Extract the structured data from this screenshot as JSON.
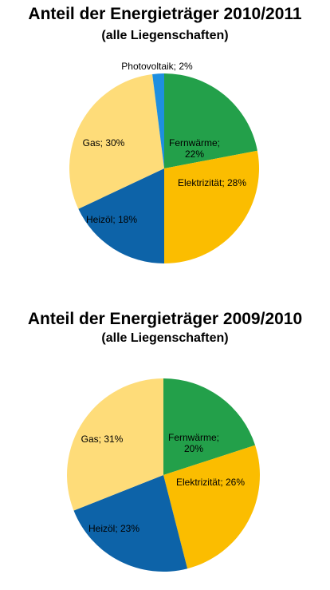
{
  "chart_data": [
    {
      "type": "pie",
      "title": "Anteil der Energieträger 2010/2011",
      "subtitle": "(alle Liegenschaften)",
      "slices": [
        {
          "label": "Fernwärme",
          "value": 22,
          "color": "#23a04a",
          "text_lines": [
            "Fernwärme;",
            "22%"
          ]
        },
        {
          "label": "Elektrizität",
          "value": 28,
          "color": "#fbbd00",
          "text_lines": [
            "Elektrizität; 28%"
          ]
        },
        {
          "label": "Heizöl",
          "value": 18,
          "color": "#0d63a8",
          "text_lines": [
            "Heizöl; 18%"
          ]
        },
        {
          "label": "Gas",
          "value": 30,
          "color": "#fedc79",
          "text_lines": [
            "Gas; 30%"
          ]
        },
        {
          "label": "Photovoltaik",
          "value": 2,
          "color": "#1e8fe0",
          "text_lines": [
            "Photovoltaik;  2%"
          ]
        }
      ]
    },
    {
      "type": "pie",
      "title": "Anteil der Energieträger 2009/2010",
      "subtitle": "(alle Liegenschaften)",
      "slices": [
        {
          "label": "Fernwärme",
          "value": 20,
          "color": "#23a04a",
          "text_lines": [
            "Fernwärme;",
            "20%"
          ]
        },
        {
          "label": "Elektrizität",
          "value": 26,
          "color": "#fbbd00",
          "text_lines": [
            "Elektrizität; 26%"
          ]
        },
        {
          "label": "Heizöl",
          "value": 23,
          "color": "#0d63a8",
          "text_lines": [
            "Heizöl; 23%"
          ]
        },
        {
          "label": "Gas",
          "value": 31,
          "color": "#fedc79",
          "text_lines": [
            "Gas; 31%"
          ]
        }
      ]
    }
  ]
}
